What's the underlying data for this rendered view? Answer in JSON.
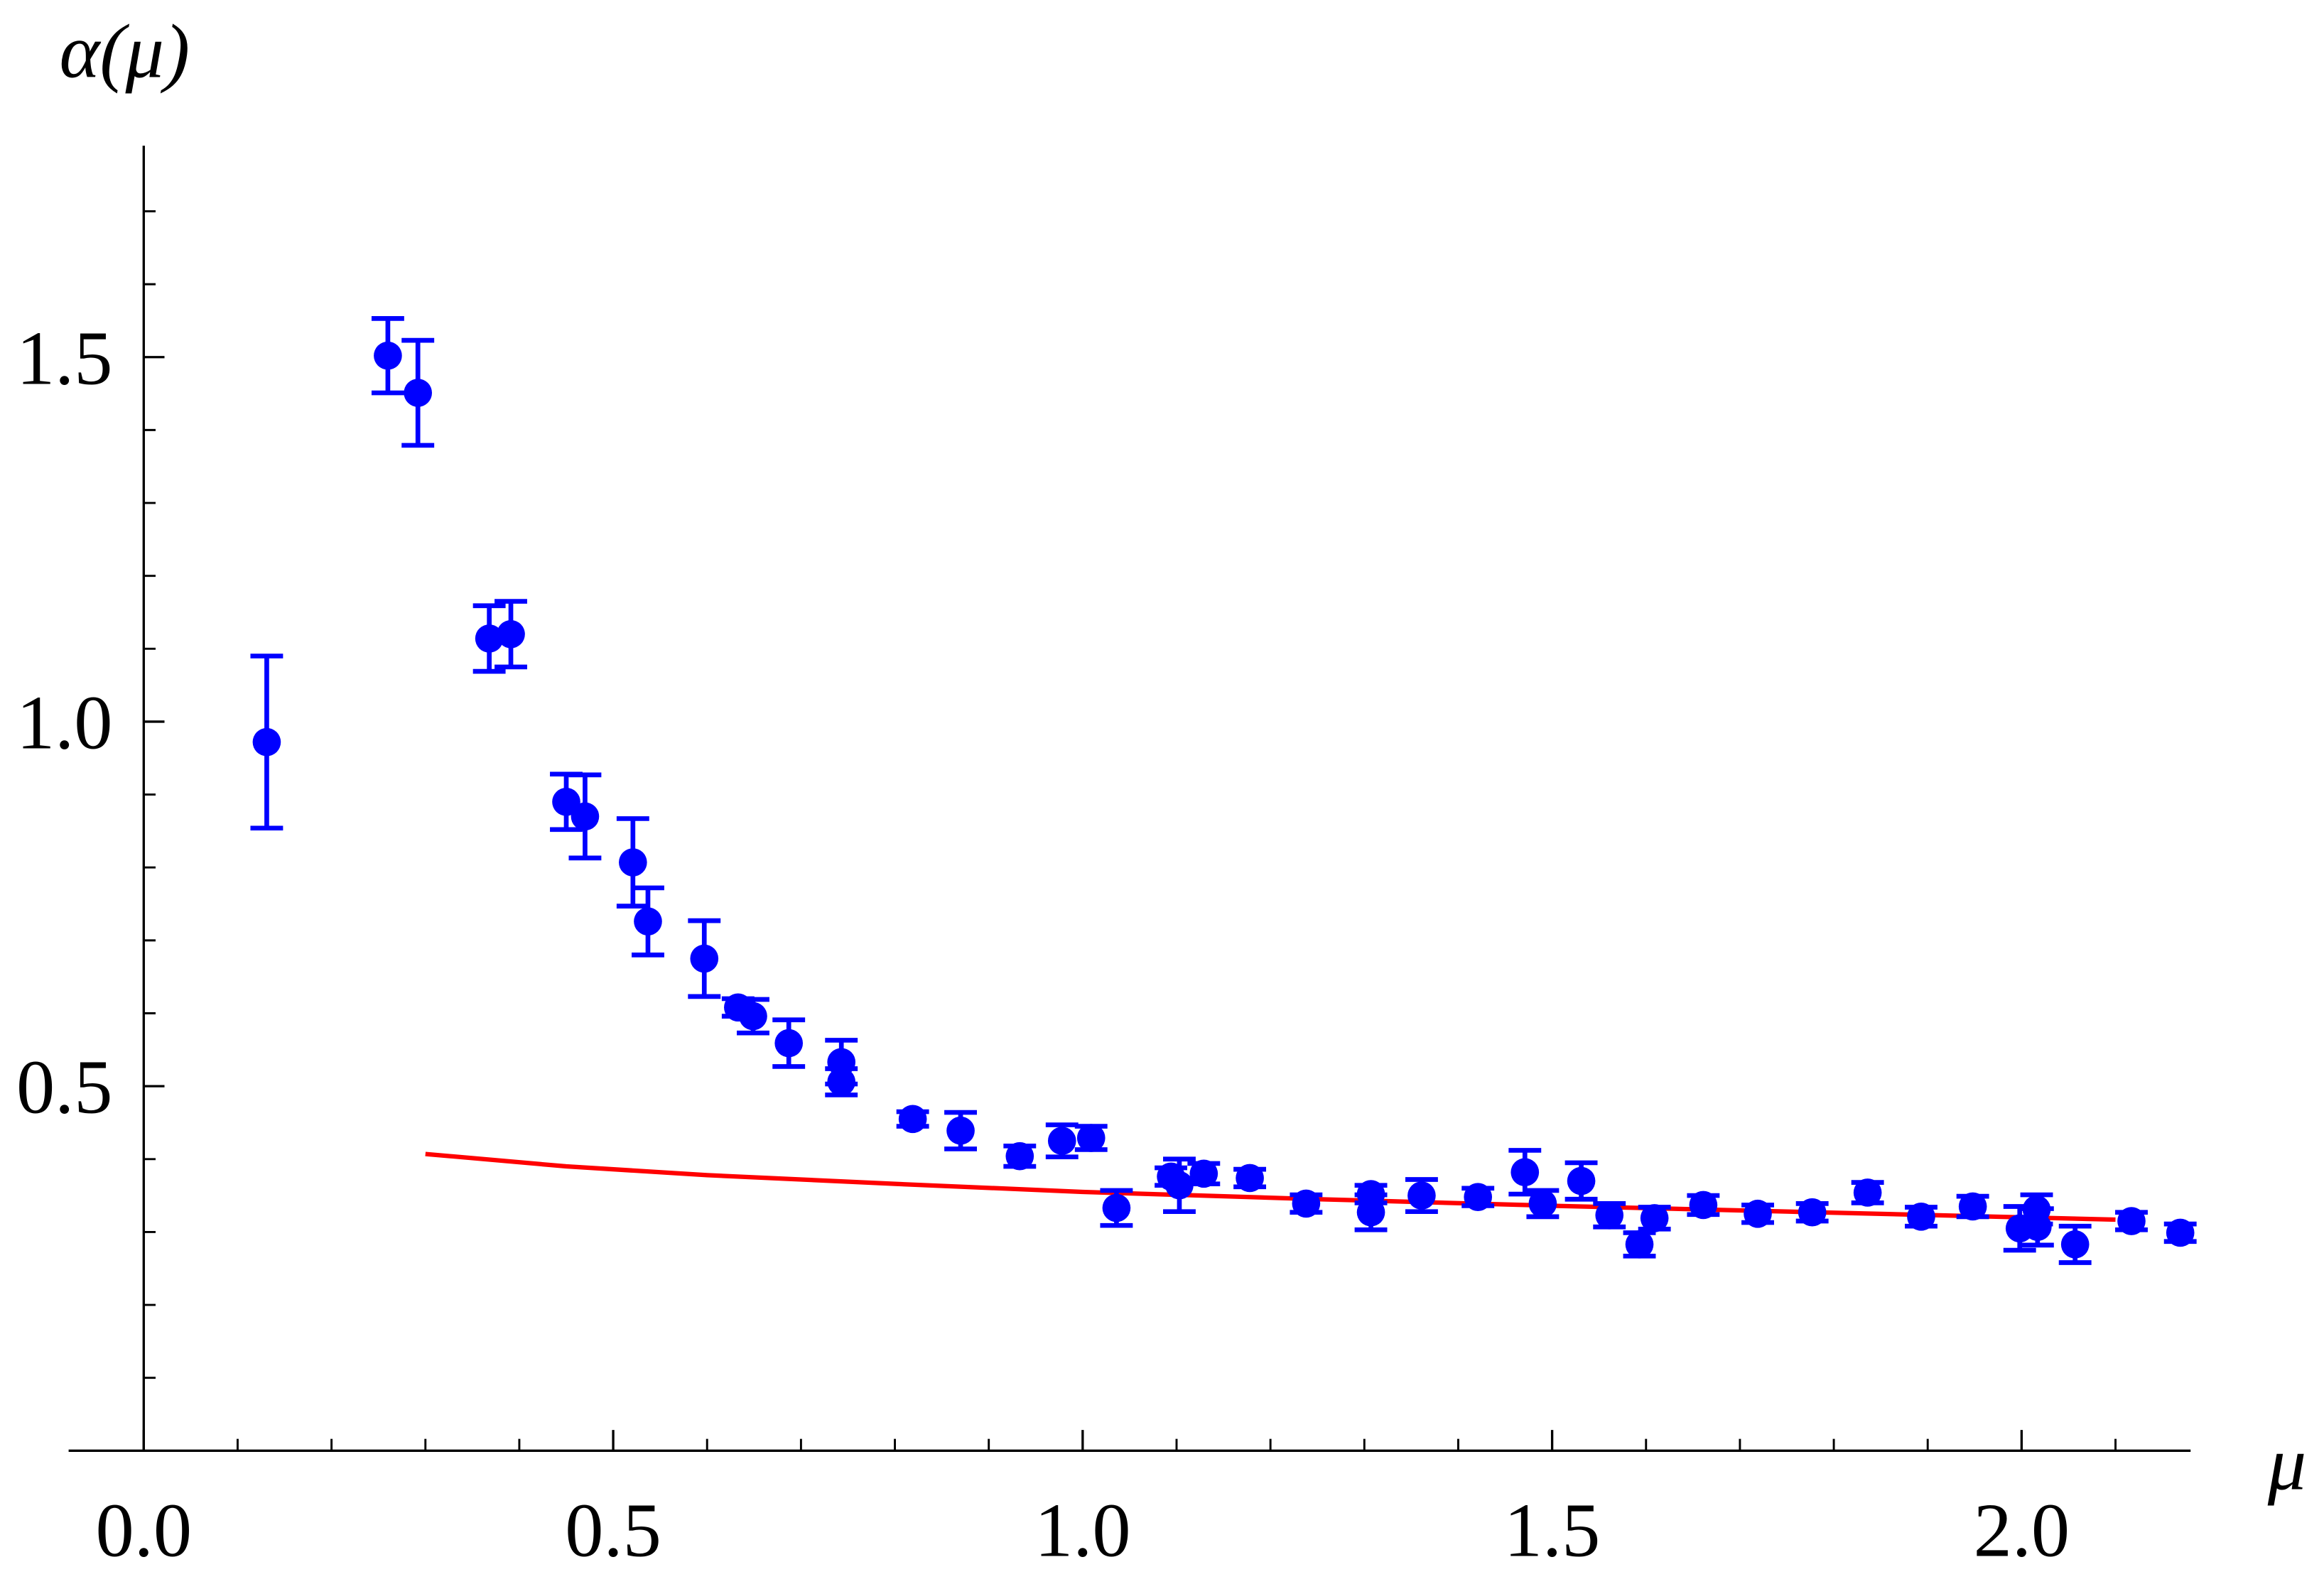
{
  "chart_data": {
    "type": "scatter",
    "x_label": "μ",
    "y_label": "α(μ)",
    "xlim": [
      -0.08,
      2.18
    ],
    "ylim": [
      0,
      1.79
    ],
    "xticks": [
      {
        "value": 0,
        "label": "0.0"
      },
      0.5,
      {
        "value": 1,
        "label": "1.0"
      },
      1.5,
      {
        "value": 2,
        "label": "2.0"
      }
    ],
    "xminorticks": [
      0.1,
      0.2,
      0.3,
      0.4,
      0.6,
      0.7,
      0.8,
      0.9,
      1.1,
      1.2,
      1.3,
      1.4,
      1.6,
      1.7,
      1.8,
      1.9,
      2.1
    ],
    "yticks": [
      0.5,
      {
        "value": 1,
        "label": "1.0"
      },
      1.5
    ],
    "yminorticks": [
      0.1,
      0.2,
      0.3,
      0.4,
      0.6,
      0.7,
      0.8,
      0.9,
      1.1,
      1.2,
      1.3,
      1.4,
      1.6,
      1.7
    ],
    "series": [
      {
        "type": "scatter",
        "color": "#0000ff",
        "x": [
          0.131,
          0.26,
          0.292,
          0.368,
          0.391,
          0.45,
          0.47,
          0.521,
          0.537,
          0.597,
          0.633,
          0.649,
          0.687,
          0.743,
          0.743,
          0.819,
          0.87,
          0.933,
          0.978,
          1.009,
          1.036,
          1.094,
          1.103,
          1.129,
          1.178,
          1.238,
          1.307,
          1.307,
          1.361,
          1.421,
          1.471,
          1.49,
          1.531,
          1.561,
          1.593,
          1.609,
          1.661,
          1.719,
          1.777,
          1.836,
          1.893,
          1.948,
          1.998,
          2.016,
          2.017,
          2.057,
          2.117,
          2.169
        ],
        "values": [
          0.972,
          1.502,
          1.451,
          1.114,
          1.12,
          0.89,
          0.87,
          0.807,
          0.726,
          0.675,
          0.608,
          0.596,
          0.559,
          0.533,
          0.506,
          0.455,
          0.439,
          0.404,
          0.425,
          0.429,
          0.333,
          0.376,
          0.364,
          0.38,
          0.374,
          0.339,
          0.352,
          0.327,
          0.35,
          0.348,
          0.382,
          0.339,
          0.37,
          0.323,
          0.283,
          0.319,
          0.337,
          0.325,
          0.327,
          0.354,
          0.321,
          0.335,
          0.305,
          0.331,
          0.307,
          0.283,
          0.315,
          0.299
        ],
        "errors": [
          0.118,
          0.051,
          0.072,
          0.045,
          0.045,
          0.038,
          0.057,
          0.06,
          0.046,
          0.052,
          0.012,
          0.023,
          0.032,
          0.03,
          0.018,
          0.01,
          0.025,
          0.014,
          0.022,
          0.016,
          0.024,
          0.012,
          0.036,
          0.014,
          0.012,
          0.012,
          0.012,
          0.024,
          0.022,
          0.012,
          0.03,
          0.018,
          0.025,
          0.016,
          0.016,
          0.015,
          0.013,
          0.012,
          0.012,
          0.014,
          0.013,
          0.014,
          0.03,
          0.02,
          0.025,
          0.025,
          0.012,
          0.012
        ]
      },
      {
        "type": "line",
        "color": "#ff0000",
        "x": [
          0.3,
          0.45,
          0.6,
          0.8,
          1.0,
          1.25,
          1.5,
          1.75,
          2.1
        ],
        "values": [
          0.407,
          0.39,
          0.378,
          0.366,
          0.355,
          0.345,
          0.336,
          0.328,
          0.317
        ]
      }
    ]
  }
}
